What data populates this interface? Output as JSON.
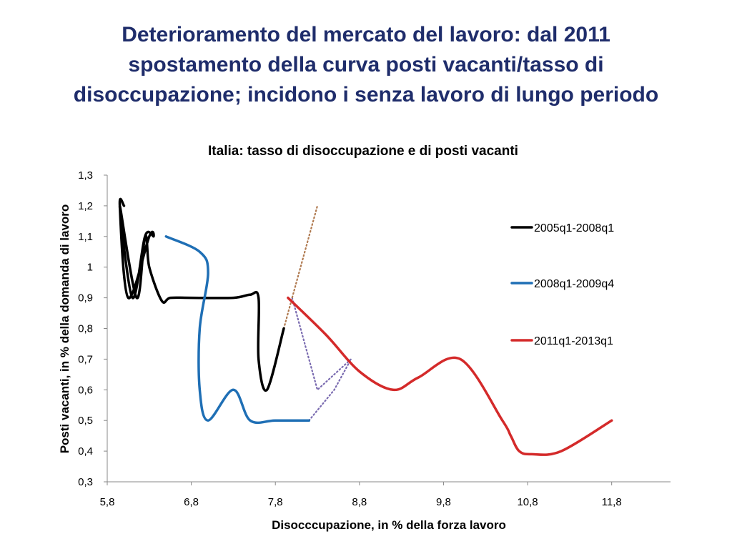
{
  "slide": {
    "title_lines": [
      "Deterioramento del mercato del lavoro: dal 2011",
      "spostamento della curva posti vacanti/tasso di",
      "disoccupazione; incidono i senza lavoro di lungo periodo"
    ]
  },
  "chart_data": {
    "type": "line",
    "title": "Italia: tasso di disoccupazione e di posti vacanti",
    "xlabel": "Disocccupazione, in % della forza lavoro",
    "ylabel": "Posti vacanti, in % della domanda di lavoro",
    "xlim": [
      5.8,
      12.5
    ],
    "ylim": [
      0.3,
      1.3
    ],
    "x_ticks": [
      5.8,
      6.8,
      7.8,
      8.8,
      9.8,
      10.8,
      11.8
    ],
    "x_tick_labels": [
      "5,8",
      "6,8",
      "7,8",
      "8,8",
      "9,8",
      "10,8",
      "11,8"
    ],
    "y_ticks": [
      0.3,
      0.4,
      0.5,
      0.6,
      0.7,
      0.8,
      0.9,
      1.0,
      1.1,
      1.2,
      1.3
    ],
    "y_tick_labels": [
      "0,3",
      "0,4",
      "0,5",
      "0,6",
      "0,7",
      "0,8",
      "0,9",
      "1",
      "1,1",
      "1,2",
      "1,3"
    ],
    "legend_position": "right",
    "series": [
      {
        "name": "2005q1-2008q1",
        "color": "#000000",
        "style": "solid",
        "in_legend": true,
        "x": [
          7.9,
          7.7,
          7.6,
          7.6,
          7.5,
          7.3,
          6.8,
          6.55,
          6.45,
          6.3,
          6.25,
          6.1,
          5.95,
          6.15,
          6.25,
          6.35,
          6.3,
          6.05,
          5.95,
          6.0
        ],
        "y": [
          0.8,
          0.6,
          0.7,
          0.9,
          0.91,
          0.9,
          0.9,
          0.9,
          0.89,
          1.0,
          1.1,
          0.9,
          1.2,
          0.9,
          1.1,
          1.1,
          1.1,
          0.9,
          1.2,
          1.2
        ]
      },
      {
        "name": "2008q1-2009q4",
        "color": "#1f6fb5",
        "style": "solid",
        "in_legend": true,
        "x": [
          6.5,
          6.9,
          7.0,
          6.9,
          6.9,
          7.0,
          7.3,
          7.5,
          7.8,
          8.2
        ],
        "y": [
          1.1,
          1.05,
          0.98,
          0.8,
          0.6,
          0.5,
          0.6,
          0.5,
          0.5,
          0.5
        ]
      },
      {
        "name": "2011q1-2013q1",
        "color": "#d42a2a",
        "style": "solid",
        "in_legend": true,
        "x": [
          7.95,
          8.4,
          8.8,
          9.2,
          9.5,
          10.0,
          10.5,
          10.6,
          10.7,
          10.85,
          11.2,
          11.8
        ],
        "y": [
          0.9,
          0.78,
          0.66,
          0.6,
          0.64,
          0.7,
          0.5,
          0.45,
          0.4,
          0.39,
          0.4,
          0.5
        ]
      },
      {
        "name": "connector-purple",
        "color": "#7a6bb0",
        "style": "dotted",
        "in_legend": false,
        "x": [
          8.2,
          8.5,
          8.7,
          8.3,
          8.0
        ],
        "y": [
          0.5,
          0.6,
          0.7,
          0.6,
          0.9
        ]
      },
      {
        "name": "connector-brown",
        "color": "#b07a50",
        "style": "dotted",
        "in_legend": false,
        "x": [
          7.9,
          8.0,
          8.3
        ],
        "y": [
          0.8,
          0.9,
          1.2
        ]
      }
    ]
  }
}
